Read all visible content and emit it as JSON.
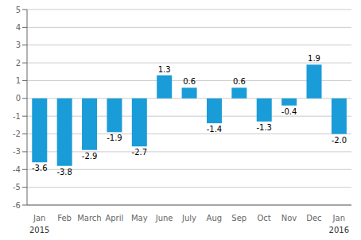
{
  "chart_data": {
    "type": "bar",
    "categories": [
      "Jan",
      "Feb",
      "March",
      "April",
      "May",
      "June",
      "July",
      "Aug",
      "Sep",
      "Oct",
      "Nov",
      "Dec",
      "Jan"
    ],
    "values": [
      -3.6,
      -3.8,
      -2.9,
      -1.9,
      -2.7,
      1.3,
      0.6,
      -1.4,
      0.6,
      -1.3,
      -0.4,
      1.9,
      -2.0
    ],
    "value_labels": [
      "-3.6",
      "-3.8",
      "-2.9",
      "-1.9",
      "-2.7",
      "1.3",
      "0.6",
      "-1.4",
      "0.6",
      "-1.3",
      "-0.4",
      "1.9",
      "-2.0"
    ],
    "color": "#1a9cd8",
    "ylim": [
      -6,
      5
    ],
    "yticks": [
      -6,
      -5,
      -4,
      -3,
      -2,
      -1,
      0,
      1,
      2,
      3,
      4,
      5
    ],
    "grid": true,
    "data_labels": true,
    "annotations": [
      {
        "text": "2015",
        "x": 0
      },
      {
        "text": "2016",
        "x": 12
      }
    ]
  }
}
